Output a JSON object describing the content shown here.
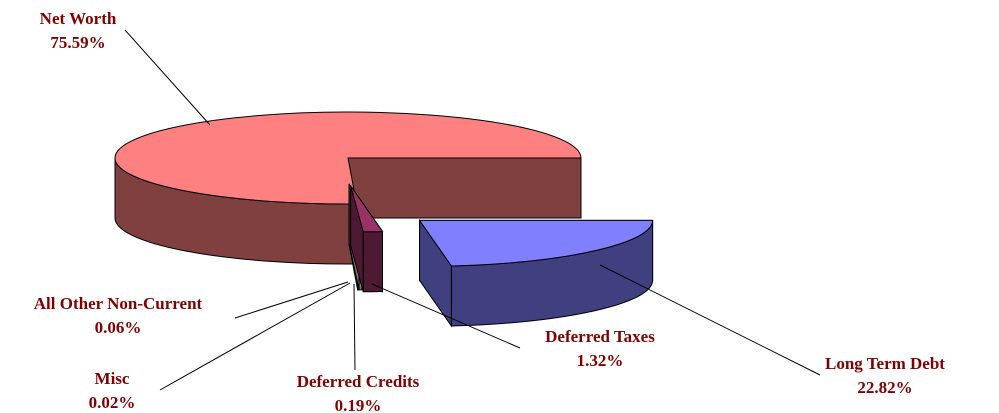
{
  "chart_data": {
    "type": "pie3d",
    "categories": [
      "Long Term Debt",
      "Deferred Taxes",
      "Deferred Credits",
      "Misc",
      "All Other Non-Current",
      "Net Worth"
    ],
    "values": [
      22.82,
      1.32,
      0.19,
      0.02,
      0.06,
      75.59
    ],
    "value_labels": [
      "22.82%",
      "1.32%",
      "0.19%",
      "0.02%",
      "0.06%",
      "75.59%"
    ],
    "colors": [
      "#8080ff",
      "#993366",
      "#ffffcc",
      "#ccffff",
      "#99cc66",
      "#ff8080"
    ]
  }
}
